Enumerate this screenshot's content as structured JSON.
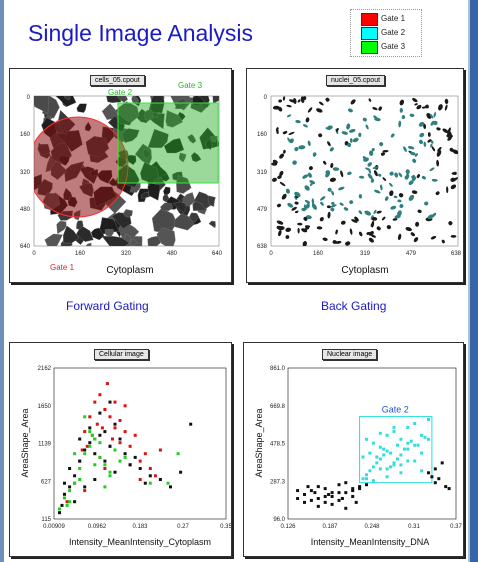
{
  "title": "Single Image Analysis",
  "legend": [
    {
      "label": "Gate 1",
      "color": "#ff0000"
    },
    {
      "label": "Gate 2",
      "color": "#00ffff"
    },
    {
      "label": "Gate 3",
      "color": "#00ff00"
    }
  ],
  "captions": {
    "forward": "Forward Gating",
    "back": "Back Gating"
  },
  "panels": {
    "cells": {
      "tag": "cells_05.cpout",
      "xlabel": "Cytoplasm",
      "xticks": [
        "0",
        "160",
        "320",
        "480",
        "640"
      ],
      "yticks": [
        "0",
        "160",
        "320",
        "480",
        "640"
      ],
      "gate1_label": "Gate 1",
      "gate2_label": "Gate 2",
      "gate3_label": "Gate 3"
    },
    "nuclei": {
      "tag": "nuclei_05.cpout",
      "xlabel": "Cytoplasm",
      "xticks": [
        "0",
        "160",
        "319",
        "479",
        "638"
      ],
      "yticks": [
        "0",
        "160",
        "319",
        "479",
        "638"
      ]
    },
    "cellular": {
      "tag": "Cellular image",
      "xlabel": "Intensity_MeanIntensity_Cytoplasm",
      "ylabel": "AreaShape_Area",
      "xticks": [
        "0.00909",
        "0.0962",
        "0.183",
        "0.27",
        "0.35"
      ],
      "yticks": [
        "115",
        "627",
        "1139",
        "1650",
        "2162"
      ]
    },
    "nuclear": {
      "tag": "Nuclear image",
      "xlabel": "Intensity_MeanIntensity_DNA",
      "ylabel": "AreaShape_Area",
      "xticks": [
        "0.126",
        "0.187",
        "0.248",
        "0.31",
        "0.37"
      ],
      "yticks": [
        "96.0",
        "287.3",
        "478.5",
        "669.8",
        "861.0"
      ],
      "gate_label": "Gate 2"
    }
  },
  "chart_data": [
    {
      "type": "scatter",
      "title": "Cellular image",
      "xlabel": "Intensity_MeanIntensity_Cytoplasm",
      "ylabel": "AreaShape_Area",
      "xlim": [
        0.00909,
        0.35
      ],
      "ylim": [
        115,
        2162
      ],
      "series": [
        {
          "name": "Gate 1",
          "color": "#dd1111",
          "x": [
            0.035,
            0.05,
            0.06,
            0.07,
            0.075,
            0.08,
            0.085,
            0.09,
            0.095,
            0.1,
            0.105,
            0.11,
            0.115,
            0.12,
            0.125,
            0.13,
            0.14,
            0.15,
            0.16,
            0.17,
            0.18,
            0.19,
            0.2,
            0.21,
            0.22,
            0.065,
            0.09,
            0.1,
            0.12,
            0.14,
            0.16,
            0.18,
            0.07,
            0.11,
            0.13,
            0.15
          ],
          "y": [
            350,
            600,
            900,
            1300,
            1100,
            1500,
            1250,
            1700,
            1400,
            1800,
            1350,
            1600,
            1950,
            1500,
            1200,
            1700,
            1450,
            1300,
            1100,
            1250,
            900,
            1000,
            800,
            700,
            1050,
            1050,
            1200,
            950,
            1100,
            1150,
            850,
            650,
            500,
            800,
            1350,
            1650
          ]
        },
        {
          "name": "Gate 3",
          "color": "#22cc22",
          "x": [
            0.02,
            0.03,
            0.04,
            0.05,
            0.06,
            0.07,
            0.08,
            0.09,
            0.1,
            0.11,
            0.12,
            0.13,
            0.14,
            0.07,
            0.08,
            0.05,
            0.1,
            0.12,
            0.06,
            0.09,
            0.11,
            0.04,
            0.15,
            0.2,
            0.235,
            0.255,
            0.035,
            0.085
          ],
          "y": [
            250,
            400,
            350,
            600,
            800,
            1000,
            1100,
            1200,
            950,
            850,
            700,
            1050,
            900,
            1500,
            1300,
            1000,
            1150,
            750,
            650,
            850,
            550,
            500,
            950,
            600,
            600,
            1000,
            300,
            1250
          ]
        },
        {
          "name": "",
          "color": "#111111",
          "x": [
            0.02,
            0.025,
            0.03,
            0.04,
            0.05,
            0.06,
            0.07,
            0.08,
            0.09,
            0.1,
            0.11,
            0.12,
            0.13,
            0.14,
            0.15,
            0.16,
            0.18,
            0.2,
            0.22,
            0.24,
            0.26,
            0.28,
            0.1,
            0.12,
            0.06,
            0.08,
            0.09,
            0.11,
            0.05,
            0.07,
            0.13,
            0.17,
            0.19,
            0.03,
            0.04
          ],
          "y": [
            200,
            300,
            450,
            550,
            700,
            900,
            1050,
            1150,
            1000,
            1250,
            1300,
            1100,
            1400,
            1200,
            1000,
            850,
            800,
            700,
            650,
            550,
            750,
            1400,
            1550,
            1700,
            1200,
            1350,
            650,
            900,
            350,
            550,
            750,
            950,
            600,
            600,
            800
          ]
        }
      ]
    },
    {
      "type": "scatter",
      "title": "Nuclear image",
      "xlabel": "Intensity_MeanIntensity_DNA",
      "ylabel": "AreaShape_Area",
      "xlim": [
        0.126,
        0.37
      ],
      "ylim": [
        96.0,
        861.0
      ],
      "series": [
        {
          "name": "Gate 2",
          "color": "#33dddd",
          "x": [
            0.235,
            0.24,
            0.245,
            0.25,
            0.255,
            0.26,
            0.265,
            0.27,
            0.275,
            0.28,
            0.285,
            0.29,
            0.3,
            0.31,
            0.32,
            0.33,
            0.25,
            0.26,
            0.27,
            0.28,
            0.29,
            0.3,
            0.31,
            0.24,
            0.25,
            0.27,
            0.29,
            0.32,
            0.26,
            0.28,
            0.3,
            0.235,
            0.245,
            0.265,
            0.285,
            0.305,
            0.325,
            0.27,
            0.29,
            0.31,
            0.255,
            0.275,
            0.295,
            0.315,
            0.24,
            0.26,
            0.28,
            0.3,
            0.32,
            0.33
          ],
          "y": [
            300,
            320,
            340,
            360,
            380,
            400,
            420,
            440,
            360,
            380,
            400,
            420,
            450,
            470,
            430,
            500,
            480,
            460,
            520,
            540,
            500,
            560,
            580,
            300,
            290,
            310,
            330,
            340,
            350,
            370,
            390,
            410,
            430,
            450,
            470,
            490,
            510,
            350,
            370,
            390,
            410,
            430,
            450,
            470,
            500,
            530,
            560,
            480,
            520,
            600
          ]
        },
        {
          "name": "",
          "color": "#111111",
          "x": [
            0.14,
            0.15,
            0.16,
            0.17,
            0.18,
            0.19,
            0.2,
            0.21,
            0.22,
            0.23,
            0.15,
            0.17,
            0.19,
            0.21,
            0.23,
            0.16,
            0.18,
            0.2,
            0.22,
            0.24,
            0.33,
            0.34,
            0.35,
            0.345,
            0.335,
            0.355,
            0.34,
            0.36,
            0.14,
            0.18,
            0.2,
            0.22,
            0.17,
            0.19,
            0.21,
            0.155,
            0.165,
            0.185,
            0.205,
            0.225
          ],
          "y": [
            200,
            220,
            240,
            260,
            250,
            230,
            270,
            280,
            240,
            260,
            180,
            200,
            210,
            230,
            250,
            190,
            210,
            230,
            250,
            270,
            330,
            350,
            380,
            300,
            310,
            260,
            280,
            250,
            240,
            180,
            190,
            210,
            160,
            170,
            150,
            260,
            230,
            220,
            200,
            180
          ]
        }
      ]
    }
  ]
}
